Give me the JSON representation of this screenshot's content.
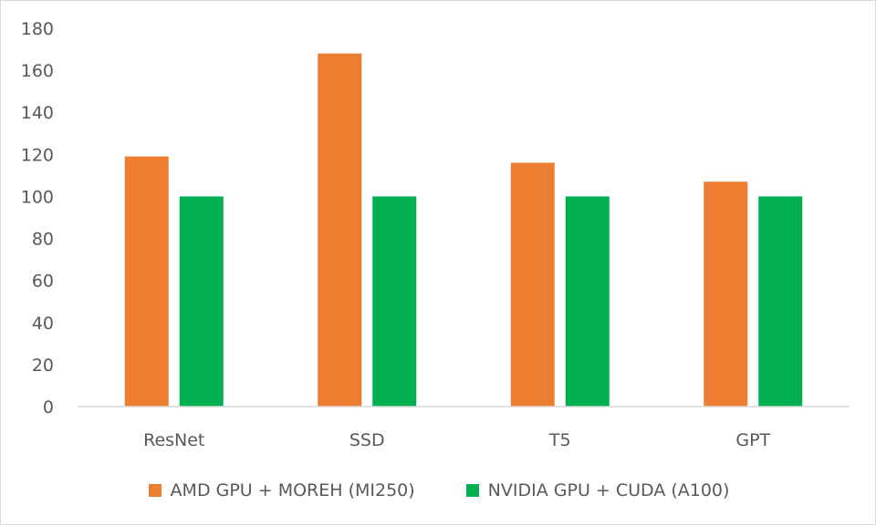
{
  "chart_data": {
    "type": "bar",
    "categories": [
      "ResNet",
      "SSD",
      "T5",
      "GPT"
    ],
    "series": [
      {
        "name": "AMD GPU + MOREH (MI250)",
        "color": "#ED7D31",
        "values": [
          119,
          168,
          116,
          107
        ]
      },
      {
        "name": "NVIDIA GPU + CUDA (A100)",
        "color": "#00B050",
        "values": [
          100,
          100,
          100,
          100
        ]
      }
    ],
    "yticks": [
      "0",
      "20",
      "40",
      "60",
      "80",
      "100",
      "120",
      "140",
      "160",
      "180"
    ],
    "ylim": [
      0,
      180
    ],
    "grid": false,
    "legend": "bottom"
  }
}
